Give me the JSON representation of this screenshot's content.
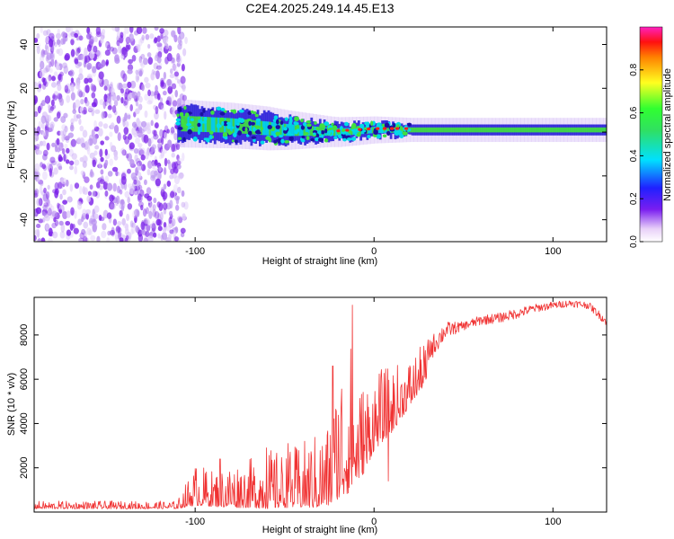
{
  "figure_title": "C2E4.2025.249.14.45.E13",
  "colorbar": {
    "label": "Normalized spectral amplitude",
    "ticks": [
      "0.0",
      "0.2",
      "0.4",
      "0.6",
      "0.8"
    ],
    "tick_values": [
      0.0,
      0.2,
      0.4,
      0.6,
      0.8
    ],
    "range": [
      0,
      1
    ]
  },
  "colors": {
    "snr_line": "#f03232",
    "noise_purple": "#7a20e8",
    "band_cyan": "#00d8e8",
    "band_green": "#40e040",
    "peak_red": "#ff2020"
  },
  "chart_data": [
    {
      "type": "heatmap",
      "title": "C2E4.2025.249.14.45.E13",
      "xlabel": "Height of straight line (km)",
      "ylabel": "Frequency (Hz)",
      "xlim": [
        -190,
        130
      ],
      "ylim": [
        -50,
        48
      ],
      "xticks": [
        -100,
        0,
        100
      ],
      "xtick_labels": [
        "-100",
        "0",
        "100"
      ],
      "yticks": [
        -40,
        -20,
        0,
        20,
        40
      ],
      "ytick_labels": [
        "-40",
        "-20",
        "0",
        "20",
        "40"
      ],
      "noise_region_x": [
        -190,
        -105
      ],
      "signal_band": {
        "x_start": -110,
        "x_end": 130,
        "center_freq_hz": [
          {
            "x": -110,
            "f": 4
          },
          {
            "x": -80,
            "f": 3
          },
          {
            "x": -50,
            "f": 1
          },
          {
            "x": -20,
            "f": 0
          },
          {
            "x": 0,
            "f": 1
          },
          {
            "x": 30,
            "f": 1
          },
          {
            "x": 130,
            "f": 1
          }
        ],
        "half_width_hz": [
          {
            "x": -110,
            "f": 8
          },
          {
            "x": -60,
            "f": 7
          },
          {
            "x": -25,
            "f": 4
          },
          {
            "x": 20,
            "f": 2.5
          },
          {
            "x": 130,
            "f": 2.5
          }
        ]
      },
      "colorbar_label": "Normalized spectral amplitude"
    },
    {
      "type": "line",
      "xlabel": "Height of straight line (km)",
      "ylabel": "SNR (10 * v/v)",
      "xlim": [
        -190,
        130
      ],
      "ylim": [
        0,
        9700
      ],
      "xticks": [
        -100,
        0,
        100
      ],
      "xtick_labels": [
        "-100",
        "0",
        "100"
      ],
      "yticks": [
        2000,
        4000,
        6000,
        8000
      ],
      "ytick_labels": [
        "2000",
        "4000",
        "6000",
        "8000"
      ],
      "series": [
        {
          "name": "SNR",
          "envelope": {
            "x": [
              -190,
              -110,
              -100,
              -90,
              -80,
              -70,
              -60,
              -50,
              -40,
              -30,
              -25,
              -20,
              -15,
              -10,
              -5,
              0,
              10,
              20,
              30,
              40,
              50,
              60,
              70,
              80,
              90,
              100,
              110,
              120,
              130
            ],
            "low": [
              150,
              150,
              300,
              250,
              200,
              200,
              150,
              200,
              200,
              200,
              300,
              600,
              800,
              1400,
              1800,
              2800,
              3600,
              4800,
              6000,
              7400,
              8000,
              8200,
              8300,
              8500,
              8800,
              9000,
              9100,
              9000,
              8200
            ],
            "high": [
              500,
              500,
              2200,
              1900,
              2300,
              2400,
              2900,
              2700,
              3200,
              3700,
              4200,
              6400,
              9300,
              5600,
              6200,
              6400,
              6600,
              7000,
              7800,
              8600,
              8600,
              8900,
              9000,
              9200,
              9400,
              9500,
              9600,
              9500,
              8800
            ]
          },
          "spikes": [
            {
              "x": -86,
              "y": 2400
            },
            {
              "x": -60,
              "y": 2900
            },
            {
              "x": -48,
              "y": 3100
            },
            {
              "x": -23,
              "y": 6600
            },
            {
              "x": -12,
              "y": 9350
            },
            {
              "x": 8,
              "y": 1400
            }
          ]
        }
      ]
    }
  ]
}
